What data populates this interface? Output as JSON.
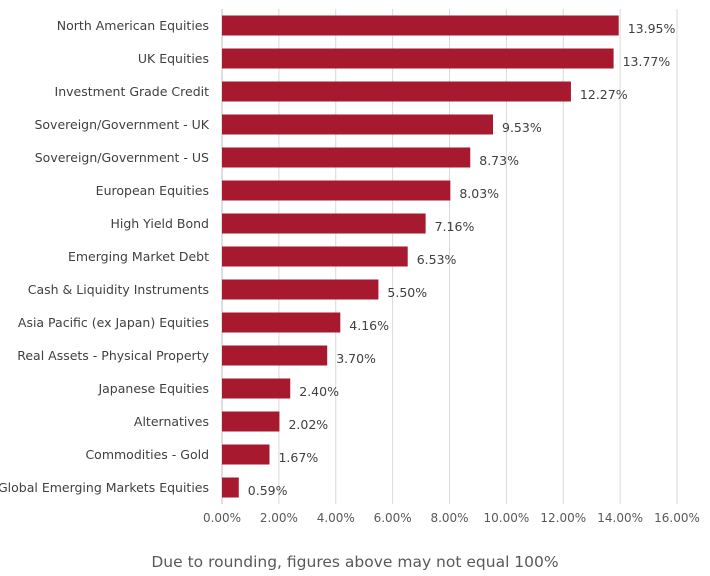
{
  "chart_data": {
    "type": "bar",
    "orientation": "horizontal",
    "categories": [
      "North American Equities",
      "UK Equities",
      "Investment Grade Credit",
      "Sovereign/Government - UK",
      "Sovereign/Government - US",
      "European Equities",
      "High Yield Bond",
      "Emerging Market Debt",
      "Cash & Liquidity Instruments",
      "Asia Pacific (ex Japan) Equities",
      "Real Assets - Physical Property",
      "Japanese Equities",
      "Alternatives",
      "Commodities - Gold",
      "Global Emerging Markets Equities"
    ],
    "values": [
      13.95,
      13.77,
      12.27,
      9.53,
      8.73,
      8.03,
      7.16,
      6.53,
      5.5,
      4.16,
      3.7,
      2.4,
      2.02,
      1.67,
      0.59
    ],
    "value_labels": [
      "13.95%",
      "13.77%",
      "12.27%",
      "9.53%",
      "8.73%",
      "8.03%",
      "7.16%",
      "6.53%",
      "5.50%",
      "4.16%",
      "3.70%",
      "2.40%",
      "2.02%",
      "1.67%",
      "0.59%"
    ],
    "xlim": [
      0,
      16
    ],
    "x_ticks": [
      0,
      2,
      4,
      6,
      8,
      10,
      12,
      14,
      16
    ],
    "x_tick_labels": [
      "0.00%",
      "2.00%",
      "4.00%",
      "6.00%",
      "8.00%",
      "10.00%",
      "12.00%",
      "14.00%",
      "16.00%"
    ],
    "grid": true,
    "bar_color": "#a6192e",
    "footnote": "Due to rounding, figures above may not equal 100%"
  }
}
